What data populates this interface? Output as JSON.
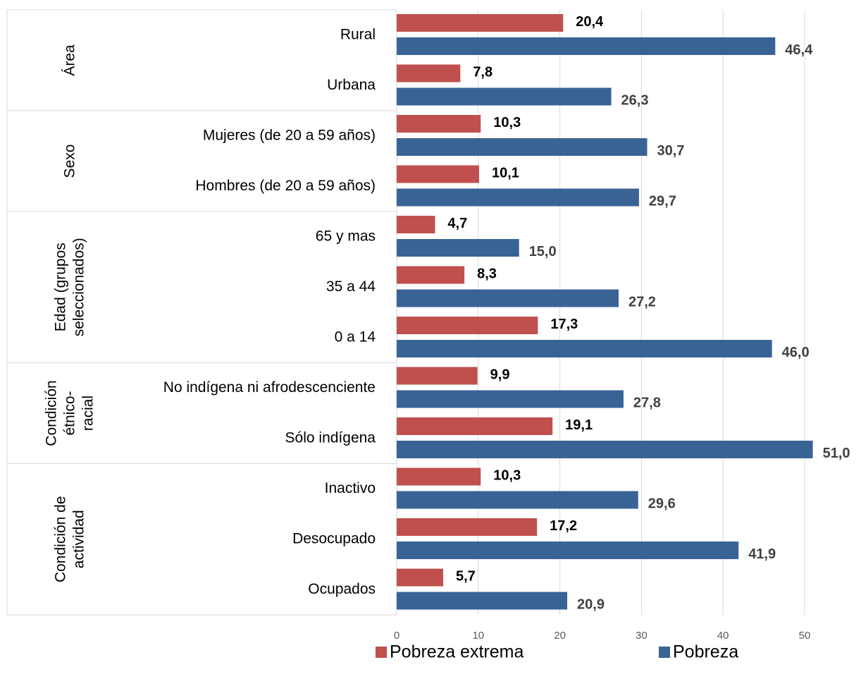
{
  "chart_data": {
    "type": "bar",
    "orientation": "horizontal",
    "groups": [
      {
        "label": [
          "Área"
        ],
        "categories": [
          "Rural",
          "Urbana"
        ]
      },
      {
        "label": [
          "Sexo"
        ],
        "categories": [
          "Mujeres (de 20 a 59 años)",
          "Hombres (de 20 a 59 años)"
        ]
      },
      {
        "label": [
          "Edad (grupos",
          "seleccionados)"
        ],
        "categories": [
          "65 y mas",
          "35 a 44",
          "0 a 14"
        ]
      },
      {
        "label": [
          "Condición",
          "étnico-",
          "racial"
        ],
        "categories": [
          "No indígena ni afrodescenciente",
          "Sólo indígena"
        ]
      },
      {
        "label": [
          "Condición de",
          "actividad"
        ],
        "categories": [
          "Inactivo",
          "Desocupado",
          "Ocupados"
        ]
      }
    ],
    "series": [
      {
        "name": "Pobreza extrema",
        "color": "#c0504d",
        "values": [
          20.4,
          7.8,
          10.3,
          10.1,
          4.7,
          8.3,
          17.3,
          9.9,
          19.1,
          10.3,
          17.2,
          5.7
        ],
        "value_labels": [
          "20,4",
          "7,8",
          "10,3",
          "10,1",
          "4,7",
          "8,3",
          "17,3",
          "9,9",
          "19,1",
          "10,3",
          "17,2",
          "5,7"
        ]
      },
      {
        "name": "Pobreza",
        "color": "#3a6395",
        "values": [
          46.4,
          26.3,
          30.7,
          29.7,
          15.0,
          27.2,
          46.0,
          27.8,
          51.0,
          29.6,
          41.9,
          20.9
        ],
        "value_labels": [
          "46,4",
          "26,3",
          "30,7",
          "29,7",
          "15,0",
          "27,2",
          "46,0",
          "27,8",
          "51,0",
          "29,6",
          "41,9",
          "20,9"
        ]
      }
    ],
    "xlim": [
      0,
      55
    ],
    "xticks": [
      0,
      10,
      20,
      30,
      40,
      50
    ],
    "grid": true,
    "legend": "bottom"
  }
}
